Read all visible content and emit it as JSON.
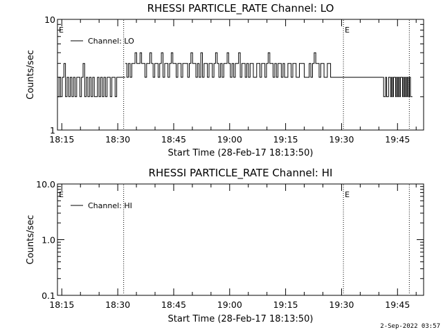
{
  "footer": {
    "timestamp": "2-Sep-2022 03:57"
  },
  "chart_data": [
    {
      "type": "line",
      "title": "RHESSI PARTICLE_RATE Channel: LO",
      "xlabel": "Start Time (28-Feb-17 18:13:50)",
      "ylabel": "Counts/sec",
      "yscale": "log",
      "ylim": [
        1,
        10
      ],
      "xlim": [
        "18:13:50",
        "19:52:00"
      ],
      "x_ticks": [
        "18:15",
        "18:30",
        "18:45",
        "19:00",
        "19:15",
        "19:30",
        "19:45"
      ],
      "y_ticks": [
        {
          "value": 1,
          "label": "1"
        },
        {
          "value": 10,
          "label": "10"
        }
      ],
      "legend": {
        "position": "top-left",
        "entries": [
          "Channel: LO"
        ]
      },
      "event_lines": [
        {
          "x": "18:31:35",
          "label": ""
        },
        {
          "x": "19:30:30",
          "label": "E"
        },
        {
          "x": "19:48:10",
          "label": ""
        }
      ],
      "event_labels": [
        {
          "x": "18:13:50",
          "label": "E"
        },
        {
          "x": "19:30:30",
          "label": "E"
        }
      ],
      "series": [
        {
          "name": "Channel: LO",
          "segments": [
            {
              "start": "18:13:50",
              "end": "18:31:00",
              "levels": [
                2,
                3,
                2,
                3,
                4,
                2,
                3,
                2,
                3,
                2,
                3,
                2,
                3,
                3,
                2,
                3,
                4,
                2,
                3,
                2,
                3,
                2,
                3,
                2,
                2,
                3,
                2,
                3,
                2,
                3,
                2,
                3,
                3,
                2,
                3,
                3,
                2,
                3,
                3,
                3
              ]
            },
            {
              "start": "18:31:00",
              "end": "18:32:00",
              "levels": [
                3,
                3
              ]
            },
            {
              "start": "18:32:00",
              "end": "19:27:30",
              "levels": [
                4,
                3,
                4,
                3,
                4,
                4,
                5,
                4,
                4,
                5,
                4,
                4,
                3,
                4,
                4,
                5,
                4,
                3,
                4,
                4,
                3,
                4,
                5,
                3,
                4,
                4,
                3,
                4,
                5,
                4,
                4,
                3,
                4,
                4,
                3,
                4,
                4,
                4,
                3,
                4,
                5,
                4,
                4,
                3,
                4,
                3,
                5,
                3,
                4,
                4,
                3,
                4,
                4,
                3,
                4,
                5,
                4,
                3,
                4,
                3,
                4,
                4,
                5,
                4,
                3,
                4,
                3,
                4,
                4,
                5,
                3,
                4,
                4,
                3,
                4,
                3,
                4,
                4,
                3,
                3,
                4,
                4,
                3,
                4,
                4,
                3,
                4,
                5,
                4,
                4,
                3,
                4,
                3,
                4,
                4,
                3,
                4,
                3,
                3,
                4,
                4,
                3,
                4,
                4,
                3,
                3,
                4,
                4,
                4,
                3,
                3,
                3,
                4,
                3,
                4,
                5,
                4,
                4,
                3,
                4,
                4,
                3,
                3,
                4,
                4,
                3
              ]
            },
            {
              "start": "19:27:30",
              "end": "19:41:00",
              "levels": [
                3,
                3,
                3,
                3,
                3,
                3,
                3,
                3,
                3,
                3,
                3,
                3,
                3,
                3,
                3,
                3,
                3,
                3,
                3,
                3,
                3,
                3,
                3,
                3
              ]
            },
            {
              "start": "19:41:00",
              "end": "19:49:00",
              "levels": [
                3,
                2,
                2,
                3,
                2,
                2,
                3,
                3,
                2,
                3,
                2,
                3,
                3,
                2,
                3,
                2,
                3,
                2,
                3,
                3,
                2,
                3,
                2,
                3,
                2,
                3,
                2,
                3,
                2,
                2
              ]
            }
          ]
        }
      ]
    },
    {
      "type": "line",
      "title": "RHESSI PARTICLE_RATE Channel: HI",
      "xlabel": "Start Time (28-Feb-17 18:13:50)",
      "ylabel": "Counts/sec",
      "yscale": "log",
      "ylim": [
        0.1,
        10
      ],
      "xlim": [
        "18:13:50",
        "19:52:00"
      ],
      "x_ticks": [
        "18:15",
        "18:30",
        "18:45",
        "19:00",
        "19:15",
        "19:30",
        "19:45"
      ],
      "y_ticks": [
        {
          "value": 0.1,
          "label": "0.1"
        },
        {
          "value": 1,
          "label": "1.0"
        },
        {
          "value": 10,
          "label": "10.0"
        }
      ],
      "legend": {
        "position": "top-left",
        "entries": [
          "Channel: HI"
        ]
      },
      "event_lines": [
        {
          "x": "18:31:35",
          "label": ""
        },
        {
          "x": "19:30:30",
          "label": "E"
        },
        {
          "x": "19:48:10",
          "label": ""
        }
      ],
      "event_labels": [
        {
          "x": "18:13:50",
          "label": "E"
        },
        {
          "x": "19:30:30",
          "label": "E"
        }
      ],
      "series": [
        {
          "name": "Channel: HI",
          "segments": []
        }
      ]
    }
  ]
}
